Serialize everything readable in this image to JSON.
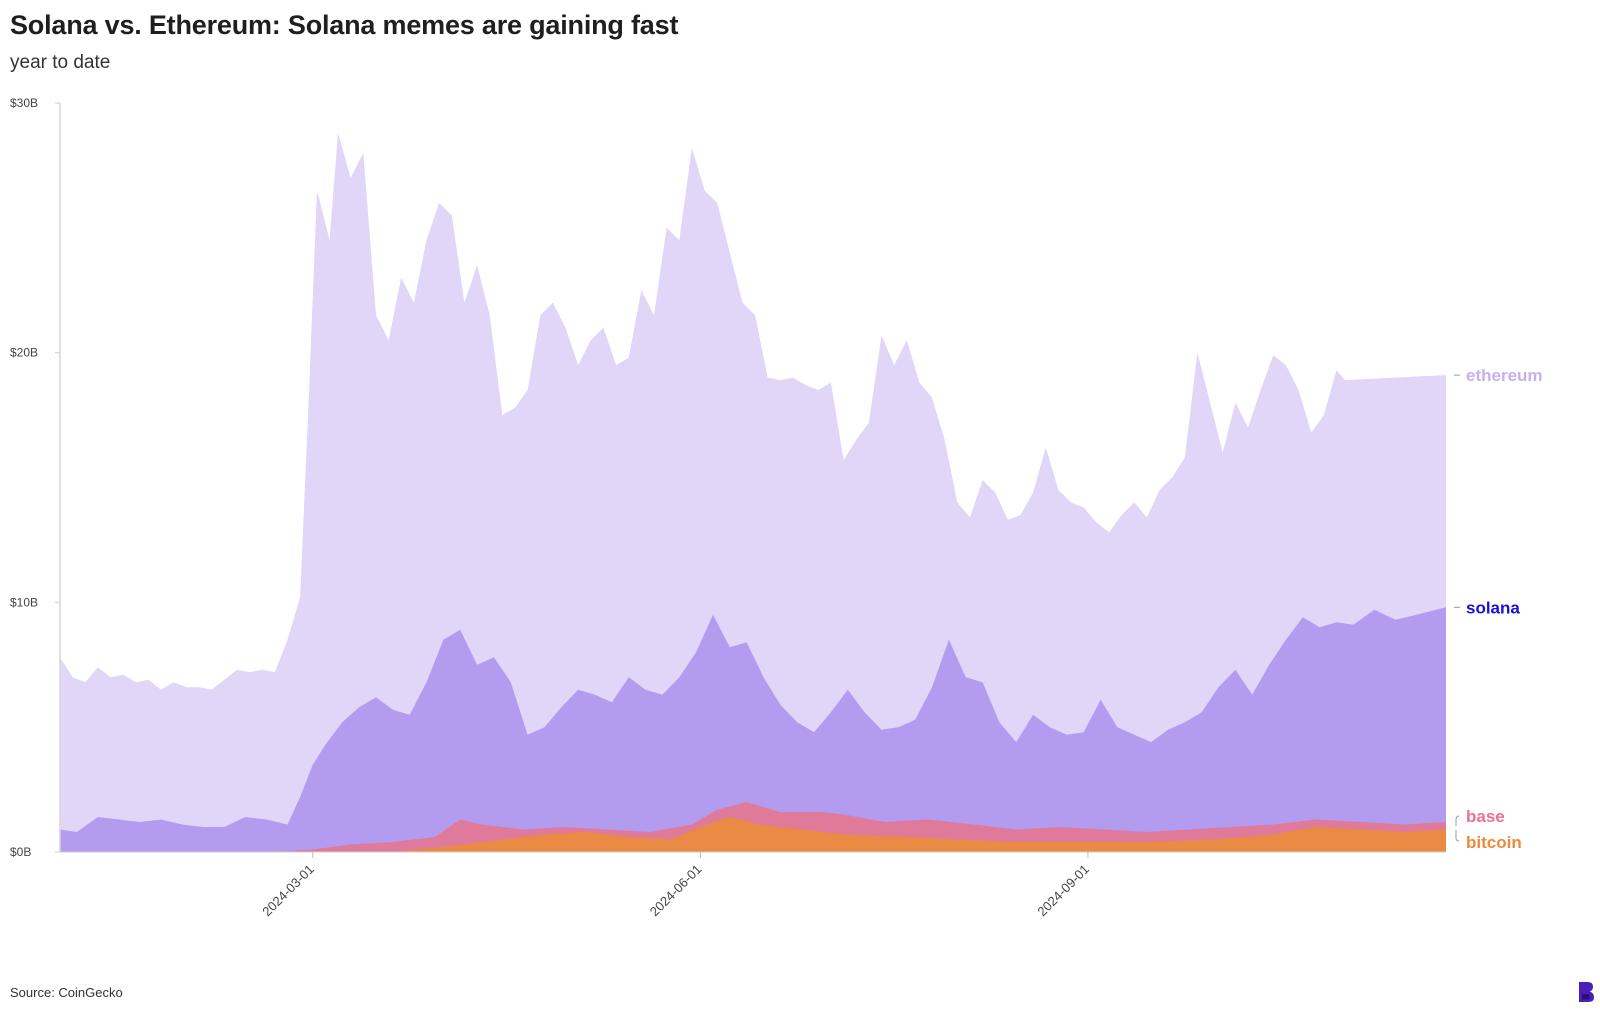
{
  "title": "Solana vs. Ethereum: Solana memes are gaining fast",
  "subtitle": "year to date",
  "source": "Source: CoinGecko",
  "chart_data": {
    "type": "area",
    "stacking": "overlapping",
    "title": "Solana vs. Ethereum: Solana memes are gaining fast",
    "subtitle": "year to date",
    "ylabel": "",
    "xlabel": "",
    "ylim": [
      0,
      30
    ],
    "y_unit": "B USD",
    "yticks": [
      0,
      10,
      20,
      30
    ],
    "ytick_labels": [
      "$0B",
      "$10B",
      "$20B",
      "$30B"
    ],
    "xticks": [
      "2024-03-01",
      "2024-06-01",
      "2024-09-01"
    ],
    "x_start": "2024-01-01",
    "x_end": "2024-11-25",
    "series": [
      {
        "name": "ethereum",
        "color": "#e1d5f8",
        "label_color": "#c6b1f0",
        "points": [
          [
            "2024-01-01",
            7.8
          ],
          [
            "2024-01-04",
            7.0
          ],
          [
            "2024-01-07",
            6.8
          ],
          [
            "2024-01-10",
            7.4
          ],
          [
            "2024-01-13",
            7.0
          ],
          [
            "2024-01-16",
            7.1
          ],
          [
            "2024-01-19",
            6.8
          ],
          [
            "2024-01-22",
            6.9
          ],
          [
            "2024-01-25",
            6.5
          ],
          [
            "2024-01-28",
            6.8
          ],
          [
            "2024-01-31",
            6.6
          ],
          [
            "2024-02-03",
            6.6
          ],
          [
            "2024-02-06",
            6.5
          ],
          [
            "2024-02-09",
            6.9
          ],
          [
            "2024-02-12",
            7.3
          ],
          [
            "2024-02-15",
            7.2
          ],
          [
            "2024-02-18",
            7.3
          ],
          [
            "2024-02-21",
            7.2
          ],
          [
            "2024-02-24",
            8.5
          ],
          [
            "2024-02-27",
            10.2
          ],
          [
            "2024-02-29",
            18.0
          ],
          [
            "2024-03-02",
            26.5
          ],
          [
            "2024-03-05",
            24.5
          ],
          [
            "2024-03-07",
            28.8
          ],
          [
            "2024-03-10",
            27.0
          ],
          [
            "2024-03-13",
            28.0
          ],
          [
            "2024-03-16",
            21.5
          ],
          [
            "2024-03-19",
            20.5
          ],
          [
            "2024-03-22",
            23.0
          ],
          [
            "2024-03-25",
            22.0
          ],
          [
            "2024-03-28",
            24.5
          ],
          [
            "2024-03-31",
            26.0
          ],
          [
            "2024-04-03",
            25.5
          ],
          [
            "2024-04-06",
            22.0
          ],
          [
            "2024-04-09",
            23.5
          ],
          [
            "2024-04-12",
            21.5
          ],
          [
            "2024-04-15",
            17.5
          ],
          [
            "2024-04-18",
            17.8
          ],
          [
            "2024-04-21",
            18.5
          ],
          [
            "2024-04-24",
            21.5
          ],
          [
            "2024-04-27",
            22.0
          ],
          [
            "2024-04-30",
            21.0
          ],
          [
            "2024-05-03",
            19.5
          ],
          [
            "2024-05-06",
            20.5
          ],
          [
            "2024-05-09",
            21.0
          ],
          [
            "2024-05-12",
            19.5
          ],
          [
            "2024-05-15",
            19.8
          ],
          [
            "2024-05-18",
            22.5
          ],
          [
            "2024-05-21",
            21.5
          ],
          [
            "2024-05-24",
            25.0
          ],
          [
            "2024-05-27",
            24.5
          ],
          [
            "2024-05-30",
            28.2
          ],
          [
            "2024-06-02",
            26.5
          ],
          [
            "2024-06-05",
            26.0
          ],
          [
            "2024-06-08",
            24.0
          ],
          [
            "2024-06-11",
            22.0
          ],
          [
            "2024-06-14",
            21.5
          ],
          [
            "2024-06-17",
            19.0
          ],
          [
            "2024-06-20",
            18.9
          ],
          [
            "2024-06-23",
            19.0
          ],
          [
            "2024-06-26",
            18.7
          ],
          [
            "2024-06-29",
            18.5
          ],
          [
            "2024-07-02",
            18.8
          ],
          [
            "2024-07-05",
            15.7
          ],
          [
            "2024-07-08",
            16.5
          ],
          [
            "2024-07-11",
            17.2
          ],
          [
            "2024-07-14",
            20.7
          ],
          [
            "2024-07-17",
            19.5
          ],
          [
            "2024-07-20",
            20.5
          ],
          [
            "2024-07-23",
            18.8
          ],
          [
            "2024-07-26",
            18.2
          ],
          [
            "2024-07-29",
            16.5
          ],
          [
            "2024-08-01",
            14.0
          ],
          [
            "2024-08-04",
            13.4
          ],
          [
            "2024-08-07",
            14.9
          ],
          [
            "2024-08-10",
            14.4
          ],
          [
            "2024-08-13",
            13.3
          ],
          [
            "2024-08-16",
            13.5
          ],
          [
            "2024-08-19",
            14.4
          ],
          [
            "2024-08-22",
            16.2
          ],
          [
            "2024-08-25",
            14.5
          ],
          [
            "2024-08-28",
            14.0
          ],
          [
            "2024-08-31",
            13.8
          ],
          [
            "2024-09-03",
            13.2
          ],
          [
            "2024-09-06",
            12.8
          ],
          [
            "2024-09-09",
            13.5
          ],
          [
            "2024-09-12",
            14.0
          ],
          [
            "2024-09-15",
            13.4
          ],
          [
            "2024-09-18",
            14.5
          ],
          [
            "2024-09-21",
            15.0
          ],
          [
            "2024-09-24",
            15.8
          ],
          [
            "2024-09-27",
            20.0
          ],
          [
            "2024-09-30",
            18.0
          ],
          [
            "2024-10-03",
            16.0
          ],
          [
            "2024-10-06",
            18.0
          ],
          [
            "2024-10-09",
            17.0
          ],
          [
            "2024-10-12",
            18.5
          ],
          [
            "2024-10-15",
            19.9
          ],
          [
            "2024-10-18",
            19.5
          ],
          [
            "2024-10-21",
            18.5
          ],
          [
            "2024-10-24",
            16.8
          ],
          [
            "2024-10-27",
            17.5
          ],
          [
            "2024-10-30",
            19.3
          ],
          [
            "2024-11-01",
            18.9
          ],
          [
            "2024-11-25",
            19.1
          ]
        ]
      },
      {
        "name": "solana",
        "color": "#b39cef",
        "label_color": "#1a0fd8",
        "points": [
          [
            "2024-01-01",
            0.9
          ],
          [
            "2024-01-05",
            0.8
          ],
          [
            "2024-01-10",
            1.4
          ],
          [
            "2024-01-15",
            1.3
          ],
          [
            "2024-01-20",
            1.2
          ],
          [
            "2024-01-25",
            1.3
          ],
          [
            "2024-01-30",
            1.1
          ],
          [
            "2024-02-04",
            1.0
          ],
          [
            "2024-02-09",
            1.0
          ],
          [
            "2024-02-14",
            1.4
          ],
          [
            "2024-02-19",
            1.3
          ],
          [
            "2024-02-24",
            1.1
          ],
          [
            "2024-02-27",
            2.2
          ],
          [
            "2024-03-01",
            3.5
          ],
          [
            "2024-03-04",
            4.3
          ],
          [
            "2024-03-08",
            5.2
          ],
          [
            "2024-03-12",
            5.8
          ],
          [
            "2024-03-16",
            6.2
          ],
          [
            "2024-03-20",
            5.7
          ],
          [
            "2024-03-24",
            5.5
          ],
          [
            "2024-03-28",
            6.8
          ],
          [
            "2024-04-01",
            8.5
          ],
          [
            "2024-04-05",
            8.9
          ],
          [
            "2024-04-09",
            7.5
          ],
          [
            "2024-04-13",
            7.8
          ],
          [
            "2024-04-17",
            6.8
          ],
          [
            "2024-04-21",
            4.7
          ],
          [
            "2024-04-25",
            5.0
          ],
          [
            "2024-04-29",
            5.8
          ],
          [
            "2024-05-03",
            6.5
          ],
          [
            "2024-05-07",
            6.3
          ],
          [
            "2024-05-11",
            6.0
          ],
          [
            "2024-05-15",
            7.0
          ],
          [
            "2024-05-19",
            6.5
          ],
          [
            "2024-05-23",
            6.3
          ],
          [
            "2024-05-27",
            7.0
          ],
          [
            "2024-05-31",
            8.0
          ],
          [
            "2024-06-04",
            9.5
          ],
          [
            "2024-06-08",
            8.2
          ],
          [
            "2024-06-12",
            8.4
          ],
          [
            "2024-06-16",
            7.0
          ],
          [
            "2024-06-20",
            5.9
          ],
          [
            "2024-06-24",
            5.2
          ],
          [
            "2024-06-28",
            4.8
          ],
          [
            "2024-07-02",
            5.6
          ],
          [
            "2024-07-06",
            6.5
          ],
          [
            "2024-07-10",
            5.6
          ],
          [
            "2024-07-14",
            4.9
          ],
          [
            "2024-07-18",
            5.0
          ],
          [
            "2024-07-22",
            5.3
          ],
          [
            "2024-07-26",
            6.6
          ],
          [
            "2024-07-30",
            8.5
          ],
          [
            "2024-08-03",
            7.0
          ],
          [
            "2024-08-07",
            6.8
          ],
          [
            "2024-08-11",
            5.2
          ],
          [
            "2024-08-15",
            4.4
          ],
          [
            "2024-08-19",
            5.5
          ],
          [
            "2024-08-23",
            5.0
          ],
          [
            "2024-08-27",
            4.7
          ],
          [
            "2024-08-31",
            4.8
          ],
          [
            "2024-09-04",
            6.1
          ],
          [
            "2024-09-08",
            5.0
          ],
          [
            "2024-09-12",
            4.7
          ],
          [
            "2024-09-16",
            4.4
          ],
          [
            "2024-09-20",
            4.9
          ],
          [
            "2024-09-24",
            5.2
          ],
          [
            "2024-09-28",
            5.6
          ],
          [
            "2024-10-02",
            6.6
          ],
          [
            "2024-10-06",
            7.3
          ],
          [
            "2024-10-10",
            6.3
          ],
          [
            "2024-10-14",
            7.5
          ],
          [
            "2024-10-18",
            8.5
          ],
          [
            "2024-10-22",
            9.4
          ],
          [
            "2024-10-26",
            9.0
          ],
          [
            "2024-10-30",
            9.2
          ],
          [
            "2024-11-03",
            9.1
          ],
          [
            "2024-11-08",
            9.7
          ],
          [
            "2024-11-13",
            9.3
          ],
          [
            "2024-11-18",
            9.5
          ],
          [
            "2024-11-25",
            9.8
          ]
        ]
      },
      {
        "name": "base",
        "color": "#e07a9a",
        "label_color": "#e9728f",
        "points": [
          [
            "2024-01-01",
            0.0
          ],
          [
            "2024-02-20",
            0.0
          ],
          [
            "2024-03-01",
            0.1
          ],
          [
            "2024-03-10",
            0.3
          ],
          [
            "2024-03-20",
            0.4
          ],
          [
            "2024-03-30",
            0.6
          ],
          [
            "2024-04-05",
            1.3
          ],
          [
            "2024-04-10",
            1.1
          ],
          [
            "2024-04-20",
            0.9
          ],
          [
            "2024-04-30",
            1.0
          ],
          [
            "2024-05-10",
            0.9
          ],
          [
            "2024-05-20",
            0.8
          ],
          [
            "2024-05-30",
            1.1
          ],
          [
            "2024-06-05",
            1.7
          ],
          [
            "2024-06-12",
            2.0
          ],
          [
            "2024-06-20",
            1.6
          ],
          [
            "2024-06-30",
            1.6
          ],
          [
            "2024-07-05",
            1.5
          ],
          [
            "2024-07-15",
            1.2
          ],
          [
            "2024-07-25",
            1.3
          ],
          [
            "2024-08-05",
            1.1
          ],
          [
            "2024-08-15",
            0.9
          ],
          [
            "2024-08-25",
            1.0
          ],
          [
            "2024-09-05",
            0.9
          ],
          [
            "2024-09-15",
            0.8
          ],
          [
            "2024-09-25",
            0.9
          ],
          [
            "2024-10-05",
            1.0
          ],
          [
            "2024-10-15",
            1.1
          ],
          [
            "2024-10-25",
            1.3
          ],
          [
            "2024-11-05",
            1.2
          ],
          [
            "2024-11-15",
            1.1
          ],
          [
            "2024-11-25",
            1.2
          ]
        ]
      },
      {
        "name": "bitcoin",
        "color": "#e98a45",
        "label_color": "#ec8a3a",
        "points": [
          [
            "2024-01-01",
            0.0
          ],
          [
            "2024-03-20",
            0.0
          ],
          [
            "2024-04-01",
            0.2
          ],
          [
            "2024-04-15",
            0.5
          ],
          [
            "2024-04-25",
            0.7
          ],
          [
            "2024-05-05",
            0.8
          ],
          [
            "2024-05-15",
            0.6
          ],
          [
            "2024-05-25",
            0.5
          ],
          [
            "2024-06-01",
            1.0
          ],
          [
            "2024-06-08",
            1.4
          ],
          [
            "2024-06-15",
            1.1
          ],
          [
            "2024-06-25",
            0.9
          ],
          [
            "2024-07-05",
            0.7
          ],
          [
            "2024-07-20",
            0.6
          ],
          [
            "2024-08-01",
            0.5
          ],
          [
            "2024-08-15",
            0.4
          ],
          [
            "2024-09-01",
            0.4
          ],
          [
            "2024-09-15",
            0.4
          ],
          [
            "2024-10-01",
            0.5
          ],
          [
            "2024-10-15",
            0.7
          ],
          [
            "2024-10-25",
            1.0
          ],
          [
            "2024-11-05",
            0.9
          ],
          [
            "2024-11-15",
            0.8
          ],
          [
            "2024-11-25",
            0.9
          ]
        ]
      }
    ]
  }
}
